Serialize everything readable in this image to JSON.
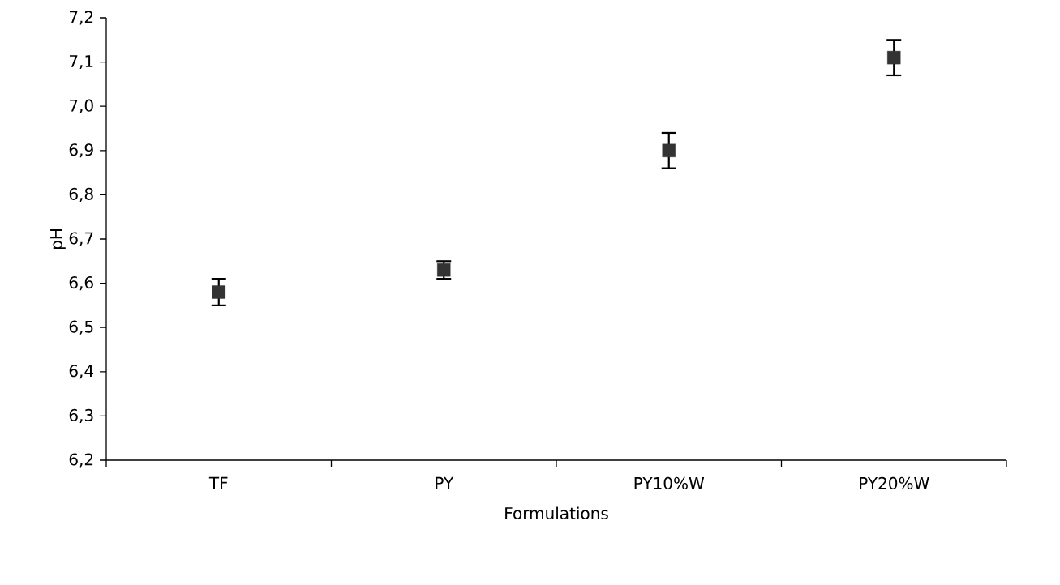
{
  "chart_data": {
    "type": "scatter",
    "xlabel": "Formulations",
    "ylabel": "pH",
    "categories": [
      "TF",
      "PY",
      "PY10%W",
      "PY20%W"
    ],
    "values": [
      6.58,
      6.63,
      6.9,
      7.11
    ],
    "errors": [
      0.03,
      0.02,
      0.04,
      0.04
    ],
    "color": "#333333",
    "marker": "square",
    "ylim": [
      6.2,
      7.2
    ],
    "yticks": [
      {
        "value": 6.2,
        "label": "6,2"
      },
      {
        "value": 6.3,
        "label": "6,3"
      },
      {
        "value": 6.4,
        "label": "6,4"
      },
      {
        "value": 6.5,
        "label": "6,5"
      },
      {
        "value": 6.6,
        "label": "6,6"
      },
      {
        "value": 6.7,
        "label": "6,7"
      },
      {
        "value": 6.8,
        "label": "6,8"
      },
      {
        "value": 6.9,
        "label": "6,9"
      },
      {
        "value": 7.0,
        "label": "7,0"
      },
      {
        "value": 7.1,
        "label": "7,1"
      },
      {
        "value": 7.2,
        "label": "7,2"
      }
    ]
  }
}
